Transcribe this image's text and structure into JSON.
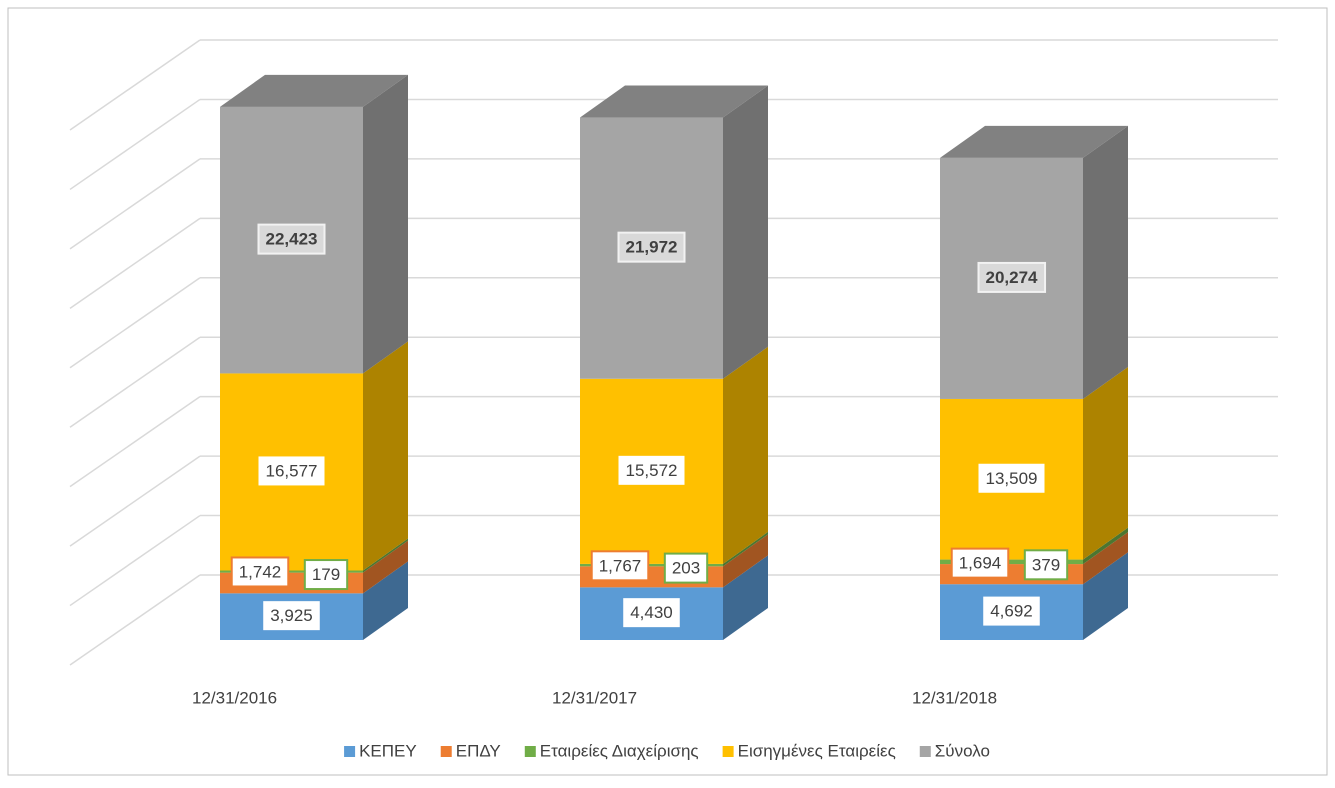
{
  "chart_data": {
    "type": "bar3d_stacked",
    "categories": [
      "12/31/2016",
      "12/31/2017",
      "12/31/2018"
    ],
    "series": [
      {
        "name": "ΚΕΠΕΥ",
        "color": "#5b9bd5",
        "values": [
          3925,
          4430,
          4692
        ],
        "value_labels": [
          "3,925",
          "4,430",
          "4,692"
        ]
      },
      {
        "name": "ΕΠΔΥ",
        "color": "#ed7d31",
        "values": [
          1742,
          1767,
          1694
        ],
        "value_labels": [
          "1,742",
          "1,767",
          "1,694"
        ]
      },
      {
        "name": "Εταιρείες Διαχείρισης",
        "color": "#70ad47",
        "values": [
          179,
          203,
          379
        ],
        "value_labels": [
          "179",
          "203",
          "379"
        ]
      },
      {
        "name": "Εισηγμένες Εταιρείες",
        "color": "#ffc000",
        "values": [
          16577,
          15572,
          13509
        ],
        "value_labels": [
          "16,577",
          "15,572",
          "13,509"
        ]
      },
      {
        "name": "Σύνολο",
        "color": "#a5a5a5",
        "values": [
          22423,
          21972,
          20274
        ],
        "value_labels": [
          "22,423",
          "21,972",
          "20,274"
        ]
      }
    ],
    "ylim": [
      0,
      45000
    ],
    "yticks": [
      0,
      5000,
      10000,
      15000,
      20000,
      25000,
      30000,
      35000,
      40000,
      45000
    ],
    "grid": true,
    "legend": "bottom"
  }
}
